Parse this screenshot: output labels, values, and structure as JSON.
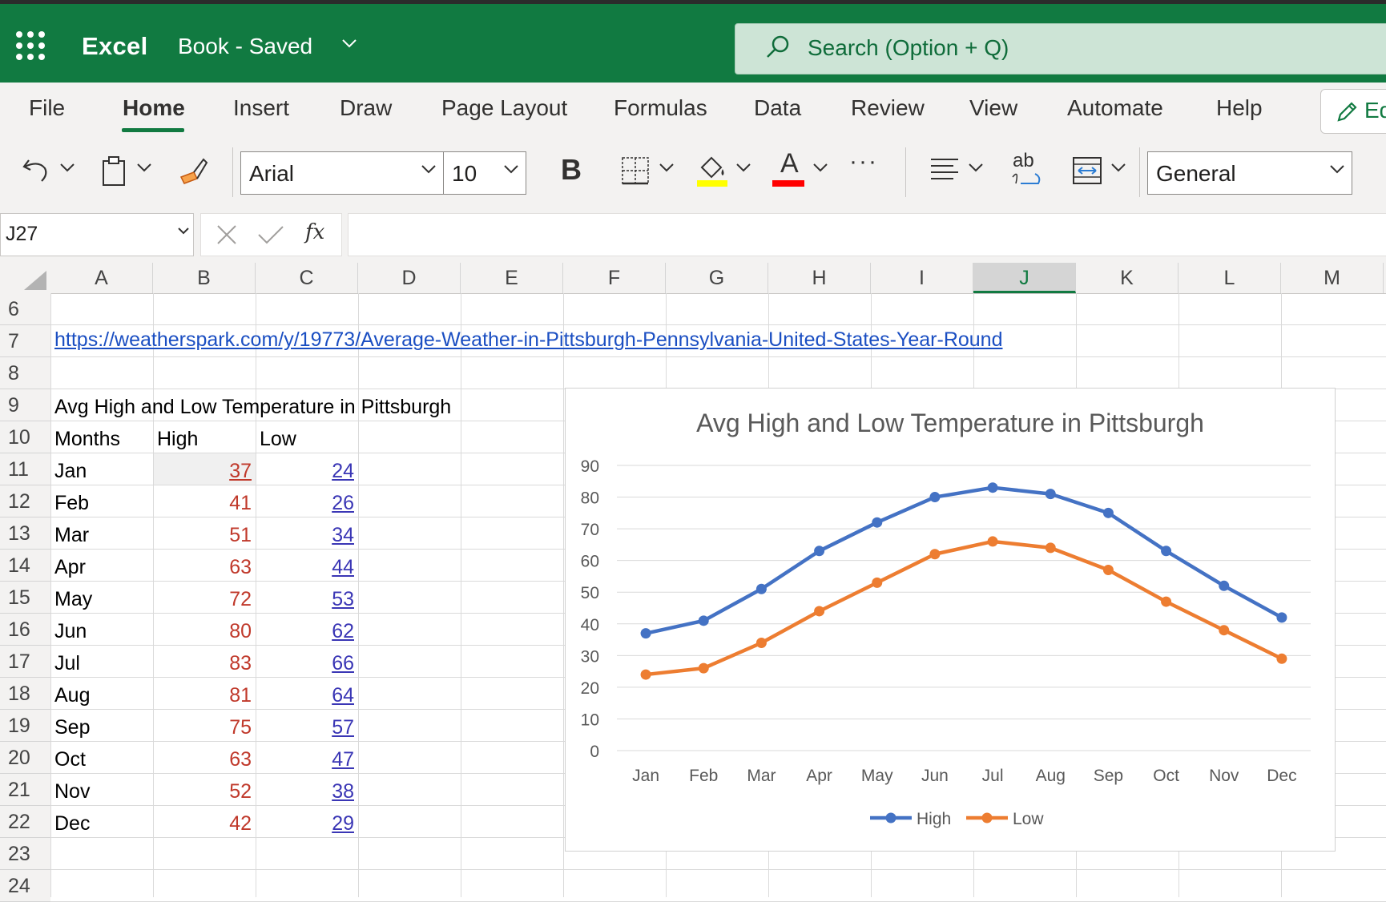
{
  "app": {
    "name": "Excel",
    "document_title": "Book - Saved",
    "search_placeholder": "Search (Option + Q)"
  },
  "ribbon": {
    "tabs": [
      "File",
      "Home",
      "Insert",
      "Draw",
      "Page Layout",
      "Formulas",
      "Data",
      "Review",
      "View",
      "Automate",
      "Help"
    ],
    "active_tab": "Home",
    "edit_button": "Ed",
    "font_name": "Arial",
    "font_size": "10",
    "bold_label": "B",
    "font_color_label": "A",
    "more_label": "···",
    "wrap_label": "ab",
    "number_format": "General",
    "colors": {
      "highlight": "#ffff00",
      "font_color": "#ff0000",
      "brand": "#117a41"
    }
  },
  "formula_bar": {
    "name_box": "J27",
    "fx_label": "fx",
    "formula": ""
  },
  "grid": {
    "columns": [
      "A",
      "B",
      "C",
      "D",
      "E",
      "F",
      "G",
      "H",
      "I",
      "J",
      "K",
      "L",
      "M"
    ],
    "selected_column": "J",
    "rows": [
      "6",
      "7",
      "8",
      "9",
      "10",
      "11",
      "12",
      "13",
      "14",
      "15",
      "16",
      "17",
      "18",
      "19",
      "20",
      "21",
      "22",
      "23",
      "24"
    ],
    "link": "https://weatherspark.com/y/19773/Average-Weather-in-Pittsburgh-Pennsylvania-United-States-Year-Round",
    "table_title": "Avg High and Low Temperature in Pittsburgh",
    "headers": [
      "Months",
      "High",
      "Low"
    ],
    "table": [
      {
        "month": "Jan",
        "high": "37",
        "low": "24"
      },
      {
        "month": "Feb",
        "high": "41",
        "low": "26"
      },
      {
        "month": "Mar",
        "high": "51",
        "low": "34"
      },
      {
        "month": "Apr",
        "high": "63",
        "low": "44"
      },
      {
        "month": "May",
        "high": "72",
        "low": "53"
      },
      {
        "month": "Jun",
        "high": "80",
        "low": "62"
      },
      {
        "month": "Jul",
        "high": "83",
        "low": "66"
      },
      {
        "month": "Aug",
        "high": "81",
        "low": "64"
      },
      {
        "month": "Sep",
        "high": "75",
        "low": "57"
      },
      {
        "month": "Oct",
        "high": "63",
        "low": "47"
      },
      {
        "month": "Nov",
        "high": "52",
        "low": "38"
      },
      {
        "month": "Dec",
        "high": "42",
        "low": "29"
      }
    ]
  },
  "chart_data": {
    "type": "line",
    "title": "Avg High and Low Temperature in Pittsburgh",
    "categories": [
      "Jan",
      "Feb",
      "Mar",
      "Apr",
      "May",
      "Jun",
      "Jul",
      "Aug",
      "Sep",
      "Oct",
      "Nov",
      "Dec"
    ],
    "series": [
      {
        "name": "High",
        "color": "#4472c4",
        "values": [
          37,
          41,
          51,
          63,
          72,
          80,
          83,
          81,
          75,
          63,
          52,
          42
        ]
      },
      {
        "name": "Low",
        "color": "#ed7d31",
        "values": [
          24,
          26,
          34,
          44,
          53,
          62,
          66,
          64,
          57,
          47,
          38,
          29
        ]
      }
    ],
    "ylim": [
      0,
      90
    ],
    "yticks": [
      0,
      10,
      20,
      30,
      40,
      50,
      60,
      70,
      80,
      90
    ],
    "grid": true,
    "legend": "bottom"
  }
}
